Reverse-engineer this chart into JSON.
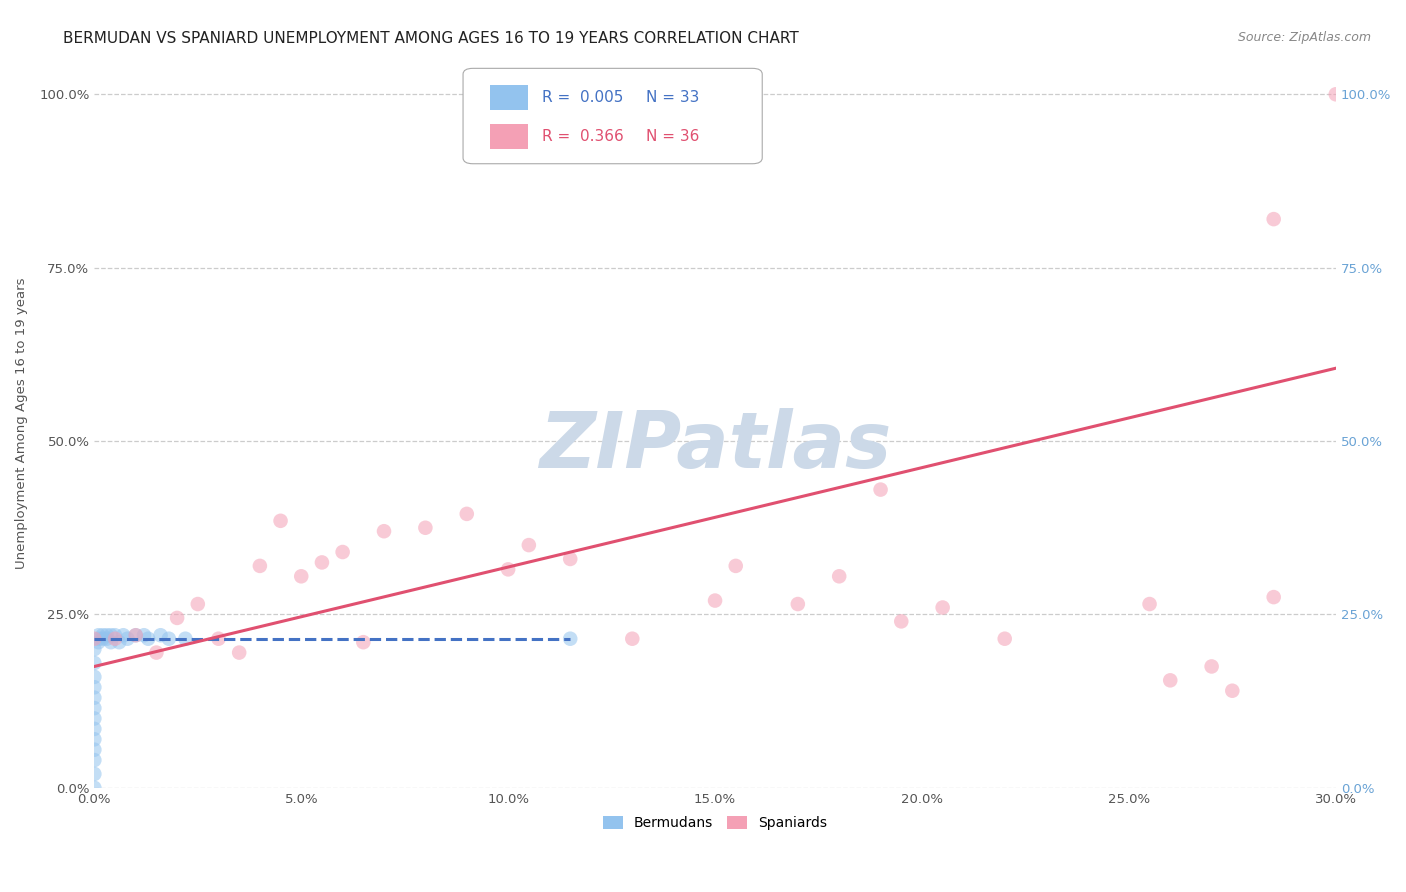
{
  "title": "BERMUDAN VS SPANIARD UNEMPLOYMENT AMONG AGES 16 TO 19 YEARS CORRELATION CHART",
  "source": "Source: ZipAtlas.com",
  "ylabel": "Unemployment Among Ages 16 to 19 years",
  "xlim": [
    0.0,
    0.3
  ],
  "ylim": [
    0.0,
    1.05
  ],
  "xticks": [
    0.0,
    0.05,
    0.1,
    0.15,
    0.2,
    0.25,
    0.3
  ],
  "xtick_labels": [
    "0.0%",
    "5.0%",
    "10.0%",
    "15.0%",
    "20.0%",
    "25.0%",
    "30.0%"
  ],
  "ytick_vals": [
    0.0,
    0.25,
    0.5,
    0.75,
    1.0
  ],
  "ytick_labels_left": [
    "0.0%",
    "25.0%",
    "50.0%",
    "75.0%",
    "100.0%"
  ],
  "ytick_labels_right": [
    "0.0%",
    "25.0%",
    "50.0%",
    "75.0%",
    "100.0%"
  ],
  "blue_R": "0.005",
  "blue_N": "33",
  "pink_R": "0.366",
  "pink_N": "36",
  "blue_color": "#93C3EE",
  "pink_color": "#F4A0B5",
  "blue_line_color": "#4472C4",
  "pink_line_color": "#E05070",
  "watermark_text": "ZIPatlas",
  "watermark_color": "#ccd9e8",
  "legend_blue_label": "Bermudans",
  "legend_pink_label": "Spaniards",
  "blue_scatter_x": [
    0.0,
    0.0,
    0.0,
    0.0,
    0.0,
    0.0,
    0.0,
    0.0,
    0.0,
    0.0,
    0.0,
    0.0,
    0.0,
    0.001,
    0.001,
    0.001,
    0.002,
    0.002,
    0.003,
    0.003,
    0.004,
    0.004,
    0.005,
    0.006,
    0.007,
    0.008,
    0.01,
    0.012,
    0.013,
    0.016,
    0.018,
    0.022,
    0.115
  ],
  "blue_scatter_y": [
    0.0,
    0.02,
    0.04,
    0.055,
    0.07,
    0.085,
    0.1,
    0.115,
    0.13,
    0.145,
    0.16,
    0.18,
    0.2,
    0.21,
    0.22,
    0.215,
    0.22,
    0.215,
    0.22,
    0.215,
    0.22,
    0.21,
    0.22,
    0.21,
    0.22,
    0.215,
    0.22,
    0.22,
    0.215,
    0.22,
    0.215,
    0.215,
    0.215
  ],
  "pink_scatter_x": [
    0.0,
    0.005,
    0.01,
    0.015,
    0.02,
    0.025,
    0.03,
    0.035,
    0.04,
    0.045,
    0.05,
    0.055,
    0.06,
    0.065,
    0.07,
    0.08,
    0.09,
    0.1,
    0.105,
    0.115,
    0.13,
    0.15,
    0.155,
    0.17,
    0.18,
    0.19,
    0.195,
    0.205,
    0.22,
    0.255,
    0.26,
    0.27,
    0.275,
    0.285,
    0.285,
    0.3
  ],
  "pink_scatter_y": [
    0.215,
    0.215,
    0.22,
    0.195,
    0.245,
    0.265,
    0.215,
    0.195,
    0.32,
    0.385,
    0.305,
    0.325,
    0.34,
    0.21,
    0.37,
    0.375,
    0.395,
    0.315,
    0.35,
    0.33,
    0.215,
    0.27,
    0.32,
    0.265,
    0.305,
    0.43,
    0.24,
    0.26,
    0.215,
    0.265,
    0.155,
    0.175,
    0.14,
    0.275,
    0.82,
    1.0
  ],
  "blue_line_x": [
    0.0,
    0.115
  ],
  "blue_line_y": [
    0.215,
    0.215
  ],
  "pink_line_x": [
    0.0,
    0.3
  ],
  "pink_line_y": [
    0.175,
    0.605
  ],
  "grid_color": "#cccccc",
  "bg_color": "#ffffff",
  "title_fontsize": 11,
  "axis_fontsize": 9.5,
  "tick_fontsize": 9.5,
  "scatter_size": 110,
  "scatter_alpha": 0.55
}
